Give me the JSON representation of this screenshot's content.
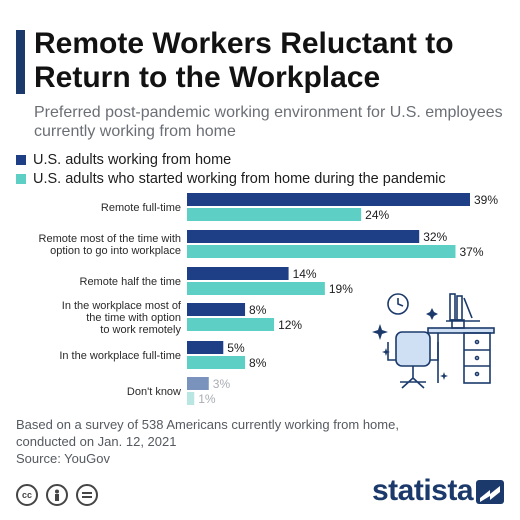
{
  "header": {
    "title": "Remote Workers Reluctant to Return to the Workplace",
    "subtitle": "Preferred post-pandemic working environment for U.S. employees currently working from home"
  },
  "colors": {
    "accent": "#1b3a6b",
    "series_1": "#1e3f85",
    "series_2": "#5ecfc4",
    "series_1_faded": "#7a93bd",
    "series_2_faded": "#b9e6e1"
  },
  "chart_data": {
    "type": "bar",
    "orientation": "horizontal",
    "categories": [
      [
        "Remote full-time"
      ],
      [
        "Remote most of the time with",
        "option to go into workplace"
      ],
      [
        "Remote half the time"
      ],
      [
        "In the workplace most of",
        "the time with option",
        "to work remotely"
      ],
      [
        "In the workplace full-time"
      ],
      [
        "Don't know"
      ]
    ],
    "series": [
      {
        "name": "U.S. adults working from home",
        "values": [
          39,
          32,
          14,
          8,
          5,
          3
        ]
      },
      {
        "name": "U.S. adults who started working from home during the pandemic",
        "values": [
          24,
          37,
          19,
          12,
          8,
          1
        ]
      }
    ],
    "value_suffix": "%",
    "xlim": [
      0,
      40
    ],
    "legend_position": "top-left",
    "grid": false
  },
  "footer": {
    "note_line1": "Based on a survey of 538 Americans currently working from home,",
    "note_line2": "conducted on Jan. 12, 2021",
    "source": "Source: YouGov",
    "brand": "statista",
    "license_icons": [
      "cc-icon",
      "person-icon",
      "equals-icon"
    ]
  }
}
